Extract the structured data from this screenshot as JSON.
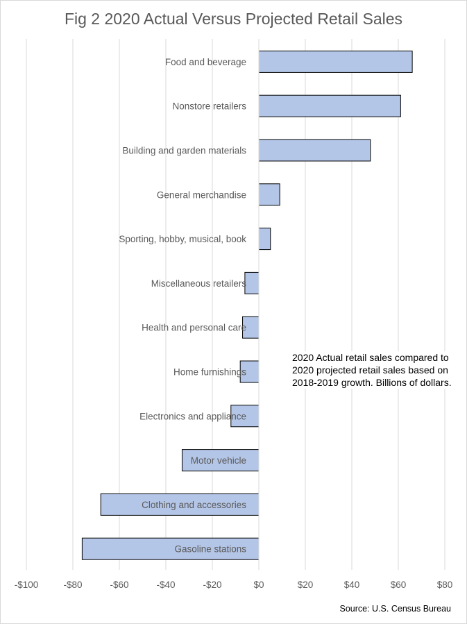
{
  "chart_data": {
    "type": "bar",
    "orientation": "horizontal",
    "title": "Fig 2 2020 Actual Versus Projected Retail Sales",
    "annotation": "2020 Actual retail sales compared  to 2020 projected retail sales based on 2018-2019 growth.  Billions of dollars.",
    "source": "Source: U.S. Census Bureau",
    "categories": [
      "Food and beverage",
      "Nonstore retailers",
      "Building and garden materials",
      "General merchandise",
      "Sporting, hobby, musical, book",
      "Miscellaneous  retailers",
      "Health and personal care",
      "Home furnishings",
      "Electronics and appliance",
      "Motor vehicle",
      "Clothing and accessories",
      "Gasoline stations"
    ],
    "values": [
      66,
      61,
      48,
      9,
      5,
      -6,
      -7,
      -8,
      -12,
      -33,
      -68,
      -76
    ],
    "xlim": [
      -100,
      80
    ],
    "xticks": [
      -100,
      -80,
      -60,
      -40,
      -20,
      0,
      20,
      40,
      60,
      80
    ],
    "xtick_labels": [
      "-$100",
      "-$80",
      "-$60",
      "-$40",
      "-$20",
      "$0",
      "$20",
      "$40",
      "$60",
      "$80"
    ],
    "grid": true,
    "legend": "none",
    "colors": {
      "bar_fill": "#b4c6e7",
      "bar_stroke": "#000000",
      "grid": "#d9d9d9",
      "text": "#595959"
    }
  }
}
